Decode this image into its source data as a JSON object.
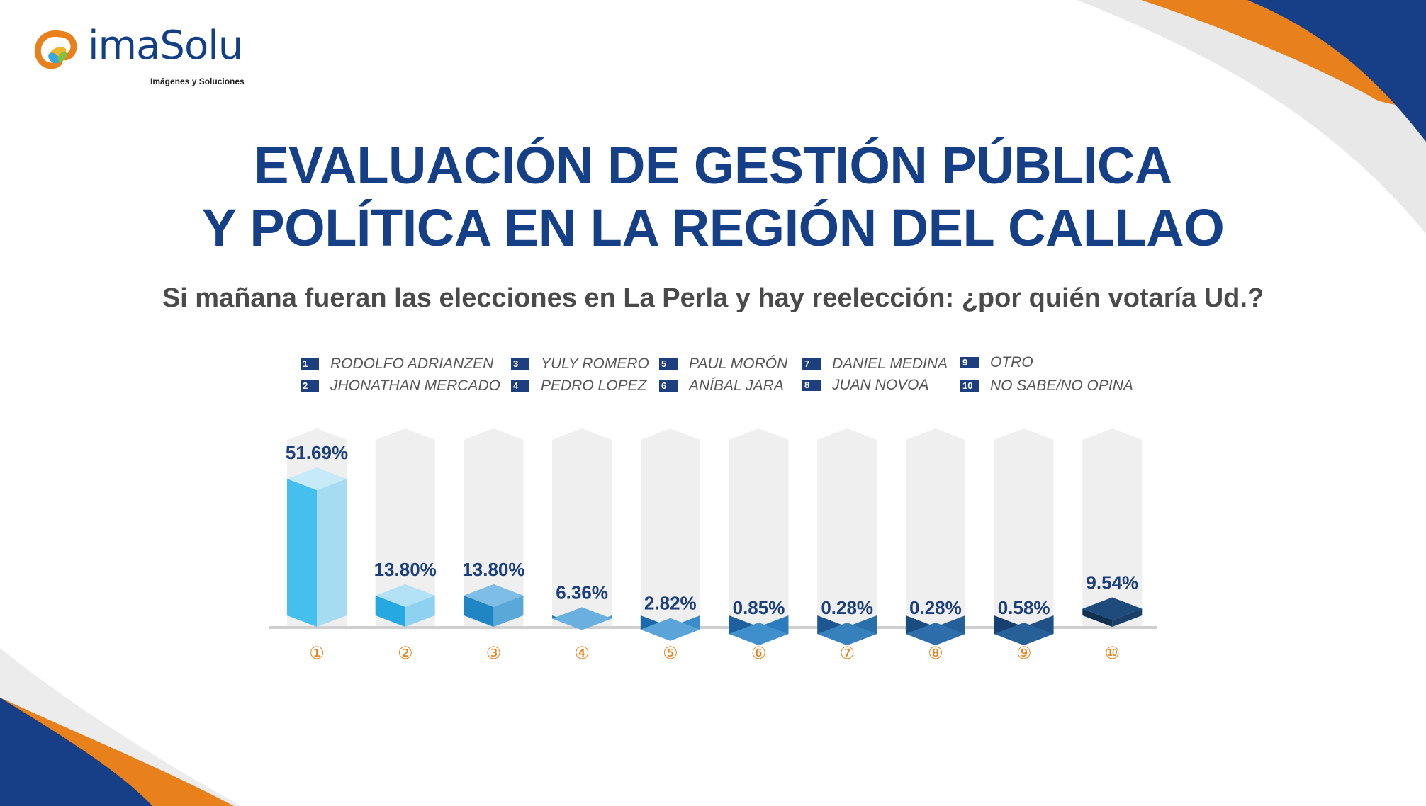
{
  "brand": {
    "name": "imaSolu",
    "tagline": "Imágenes y Soluciones"
  },
  "header": {
    "title_line1": "EVALUACIÓN DE GESTIÓN PÚBLICA",
    "title_line2": "Y POLÍTICA EN LA REGIÓN DEL CALLAO",
    "question": "Si mañana fueran las elecciones en La Perla y hay reelección: ¿por quién votaría Ud.?"
  },
  "legend": [
    {
      "num": "1",
      "label": "RODOLFO ADRIANZEN"
    },
    {
      "num": "2",
      "label": "JHONATHAN MERCADO"
    },
    {
      "num": "3",
      "label": "YULY ROMERO"
    },
    {
      "num": "4",
      "label": "PEDRO LOPEZ"
    },
    {
      "num": "5",
      "label": "PAUL MORÓN"
    },
    {
      "num": "6",
      "label": "ANÍBAL JARA"
    },
    {
      "num": "7",
      "label": "DANIEL MEDINA"
    },
    {
      "num": "8",
      "label": "JUAN NOVOA"
    },
    {
      "num": "9",
      "label": "OTRO"
    },
    {
      "num": "10",
      "label": "NO SABE/NO OPINA"
    }
  ],
  "colors": {
    "brand_blue": "#153f87",
    "accent_orange": "#e8801c",
    "track_gray": "#efefef"
  },
  "chart_data": {
    "type": "bar",
    "categories": [
      "1",
      "2",
      "3",
      "4",
      "5",
      "6",
      "7",
      "8",
      "9",
      "10"
    ],
    "values": [
      51.69,
      13.8,
      13.8,
      6.36,
      2.82,
      0.85,
      0.28,
      0.28,
      0.58,
      9.54
    ],
    "value_labels": [
      "51.69%",
      "13.80%",
      "13.80%",
      "6.36%",
      "2.82%",
      "0.85%",
      "0.28%",
      "0.28%",
      "0.58%",
      "9.54%"
    ],
    "category_markers": [
      "①",
      "②",
      "③",
      "④",
      "⑤",
      "⑥",
      "⑦",
      "⑧",
      "⑨",
      "⑩"
    ],
    "ylim": [
      0,
      60
    ],
    "grid": false,
    "legend_position": "top",
    "bar_colors": [
      {
        "front": "#45c0ee",
        "side": "#a6dcf2",
        "top": "#c6eaf8"
      },
      {
        "front": "#25a9e0",
        "side": "#8fd1f0",
        "top": "#b3e1f6"
      },
      {
        "front": "#1f86c3",
        "side": "#59a8d8",
        "top": "#7dbde6"
      },
      {
        "front": "#1673b4",
        "side": "#4f9bd3",
        "top": "#69afe0"
      },
      {
        "front": "#1c6aab",
        "side": "#3a8ccb",
        "top": "#5aa4d9"
      },
      {
        "front": "#1d5f9f",
        "side": "#2c7cbd",
        "top": "#3f8fcc"
      },
      {
        "front": "#1d5691",
        "side": "#2a6eaa",
        "top": "#3680bc"
      },
      {
        "front": "#1b4c81",
        "side": "#245f99",
        "top": "#2d6eaa"
      },
      {
        "front": "#163f72",
        "side": "#1f5187",
        "top": "#275f97"
      },
      {
        "front": "#12304f",
        "side": "#1a3f69",
        "top": "#1f4b7c"
      }
    ]
  }
}
